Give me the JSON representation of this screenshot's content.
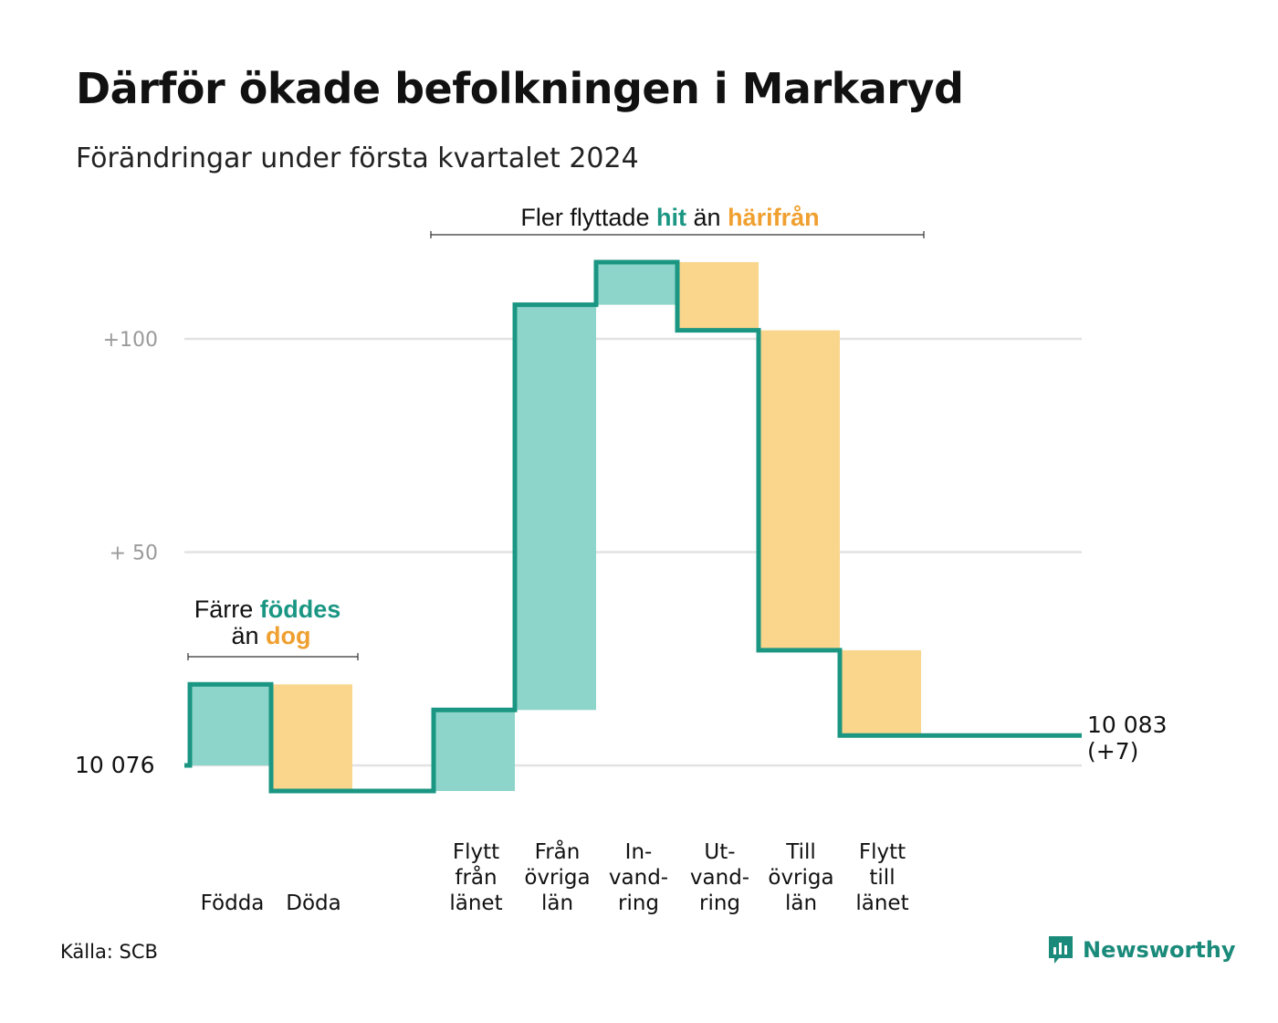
{
  "title": "Därför ökade befolkningen i Markaryd",
  "subtitle": "Förändringar under första kvartalet 2024",
  "source": "Källa: SCB",
  "brand": "Newsworthy",
  "colors": {
    "increase_fill": "#8dd5cb",
    "decrease_fill": "#fad68c",
    "line": "#1a9683",
    "accent_teal": "#1a9683",
    "accent_orange": "#f0a030",
    "grid": "#e2e2e2",
    "tick_text": "#9a9a9a"
  },
  "annotations": {
    "natural": {
      "line1_pre": "Färre",
      "line1_hl": "föddes",
      "line2_pre": "än",
      "line2_hl": "dog"
    },
    "migration": {
      "pre": "Fler flyttade",
      "hl1": "hit",
      "mid": "än",
      "hl2": "härifrån"
    }
  },
  "chart_data": {
    "type": "waterfall",
    "baseline": 10076,
    "baseline_label": "10  076",
    "end_label_line1": "10 083",
    "end_label_line2": "(+7)",
    "y_ticks": [
      {
        "value": 100,
        "label": "+100"
      },
      {
        "value": 50,
        "label": "+  50"
      }
    ],
    "steps": [
      {
        "label_lines": [
          "Födda"
        ],
        "change": 19,
        "group": "natural"
      },
      {
        "label_lines": [
          "Döda"
        ],
        "change": -25,
        "group": "natural"
      },
      {
        "label_lines": [],
        "change": 0,
        "group": "gap"
      },
      {
        "label_lines": [
          "Flytt",
          "från",
          "länet"
        ],
        "change": 19,
        "group": "migration"
      },
      {
        "label_lines": [
          "Från",
          "övriga",
          "län"
        ],
        "change": 95,
        "group": "migration"
      },
      {
        "label_lines": [
          "In-",
          "vand-",
          "ring"
        ],
        "change": 10,
        "group": "migration"
      },
      {
        "label_lines": [
          "Ut-",
          "vand-",
          "ring"
        ],
        "change": -16,
        "group": "migration"
      },
      {
        "label_lines": [
          "Till",
          "övriga",
          "län"
        ],
        "change": -75,
        "group": "migration"
      },
      {
        "label_lines": [
          "Flytt",
          "till",
          "länet"
        ],
        "change": -20,
        "group": "migration"
      }
    ],
    "final_change": 7
  }
}
